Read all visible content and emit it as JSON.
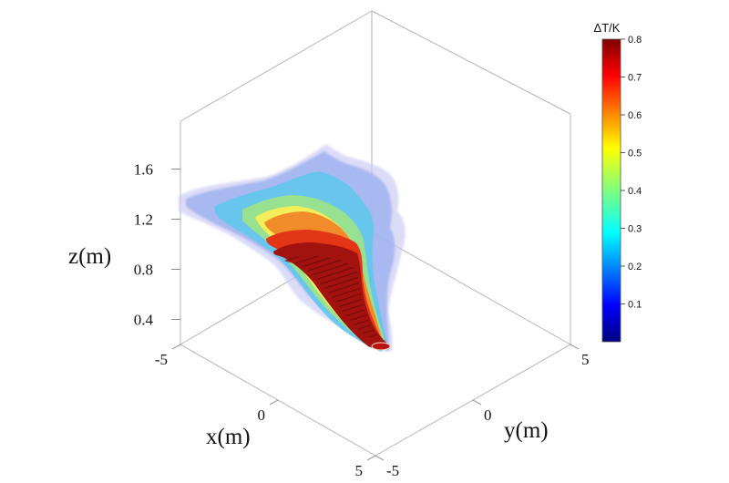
{
  "chart_data": {
    "type": "3d-surface",
    "axes": {
      "x": {
        "label": "x(m)",
        "ticks": [
          "-5",
          "0",
          "5"
        ],
        "range": [
          -5,
          5
        ]
      },
      "y": {
        "label": "y(m)",
        "ticks": [
          "-5",
          "0",
          "5"
        ],
        "range": [
          -5,
          5
        ]
      },
      "z": {
        "label": "z(m)",
        "ticks": [
          "0.4",
          "0.8",
          "1.2",
          "1.6"
        ],
        "range": [
          0.2,
          1.8
        ]
      }
    },
    "colorbar": {
      "title": "ΔT/K",
      "ticks": [
        "0.1",
        "0.2",
        "0.3",
        "0.4",
        "0.5",
        "0.6",
        "0.7",
        "0.8"
      ],
      "range": [
        0,
        0.8
      ],
      "colormap": "jet"
    },
    "grid": false,
    "plume_shells": [
      {
        "value": 0.12,
        "color": "#c9caf2",
        "opacity": 0.65,
        "z_range": [
          0.25,
          1.75
        ]
      },
      {
        "value": 0.2,
        "color": "#9fb2ee",
        "opacity": 0.85,
        "z_range": [
          0.25,
          1.65
        ]
      },
      {
        "value": 0.3,
        "color": "#60c8ec",
        "opacity": 0.9,
        "z_range": [
          0.25,
          1.45
        ]
      },
      {
        "value": 0.45,
        "color": "#9be38c",
        "opacity": 0.95,
        "z_range": [
          0.25,
          1.3
        ]
      },
      {
        "value": 0.55,
        "color": "#f3ee5a",
        "opacity": 1,
        "z_range": [
          0.25,
          1.2
        ]
      },
      {
        "value": 0.65,
        "color": "#f28c2b",
        "opacity": 1,
        "z_range": [
          0.25,
          1.1
        ]
      },
      {
        "value": 0.75,
        "color": "#e33616",
        "opacity": 1,
        "z_range": [
          0.25,
          0.9
        ]
      },
      {
        "value": 0.8,
        "color": "#a2120f",
        "opacity": 1,
        "z_range": [
          0.25,
          0.78
        ]
      }
    ]
  }
}
